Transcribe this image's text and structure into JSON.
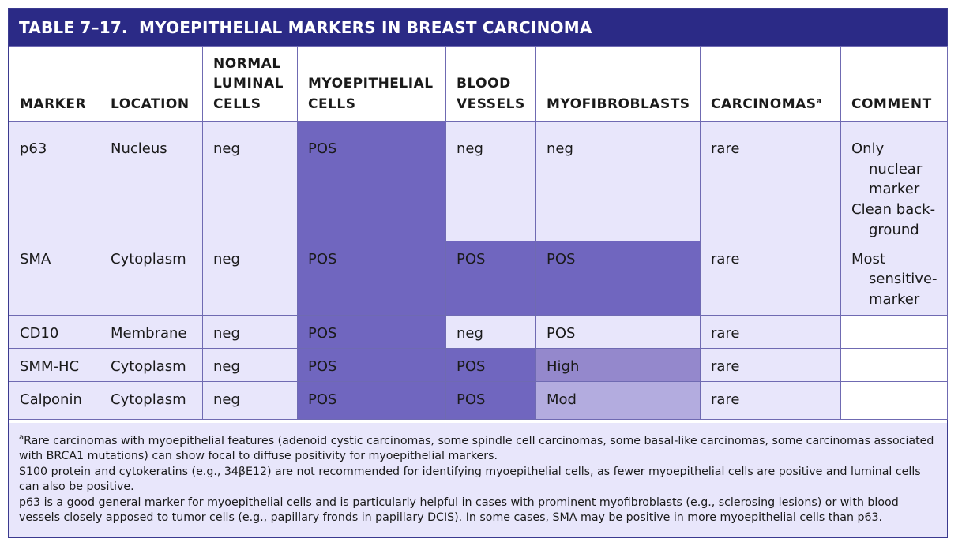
{
  "title": {
    "number": "TABLE 7–17.",
    "text": "MYOEPITHELIAL MARKERS IN BREAST CARCINOMA"
  },
  "headers": {
    "marker": "MARKER",
    "location": "LOCATION",
    "normal_1": "NORMAL",
    "normal_2": "LUMINAL",
    "normal_3": "CELLS",
    "myo_1": "MYOEPITHELIAL",
    "myo_2": "CELLS",
    "blood_1": "BLOOD",
    "blood_2": "VESSELS",
    "myofib": "MYOFIBROBLASTS",
    "carcinomas": "CARCINOMAS",
    "carcinomas_sup": "a",
    "comment": "COMMENT"
  },
  "rows": [
    {
      "marker": "p63",
      "location": "Nucleus",
      "normal": "neg",
      "myo": "POS",
      "blood": "neg",
      "myofib": "neg",
      "carcinomas": "rare",
      "comment": [
        "Only",
        "nuclear",
        "marker",
        "Clean back-",
        "ground"
      ]
    },
    {
      "marker": "SMA",
      "location": "Cytoplasm",
      "normal": "neg",
      "myo": "POS",
      "blood": "POS",
      "myofib": "POS",
      "carcinomas": "rare",
      "comment": [
        "Most",
        "sensitive-",
        "marker"
      ]
    },
    {
      "marker": "CD10",
      "location": "Membrane",
      "normal": "neg",
      "myo": "POS",
      "blood": "neg",
      "myofib": "POS",
      "carcinomas": "rare",
      "comment": []
    },
    {
      "marker": "SMM-HC",
      "location": "Cytoplasm",
      "normal": "neg",
      "myo": "POS",
      "blood": "POS",
      "myofib": "High",
      "carcinomas": "rare",
      "comment": []
    },
    {
      "marker": "Calponin",
      "location": "Cytoplasm",
      "normal": "neg",
      "myo": "POS",
      "blood": "POS",
      "myofib": "Mod",
      "carcinomas": "rare",
      "comment": []
    }
  ],
  "notes": {
    "note1_sup": "a",
    "note1": "Rare carcinomas with myoepithelial features (adenoid cystic carcinomas, some spindle cell carcinomas, some basal-like carcinomas, some carcinomas associated with BRCA1 mutations) can show focal to diffuse positivity for myoepithelial markers.",
    "note2": "S100 protein and cytokeratins (e.g., 34βE12) are not recommended for identifying myoepithelial cells, as fewer myoepithelial cells are positive and luminal cells can also be positive.",
    "note3": "p63 is a good general marker for myoepithelial cells and is particularly helpful in cases with prominent myofibroblasts (e.g., sclerosing lesions) or with blood vessels closely apposed to tumor cells (e.g., papillary fronds in papillary DCIS). In some cases, SMA may be positive in more myoepithelial cells than p63."
  },
  "colors": {
    "title_bar": "#2b2a86",
    "cell_light": "#e8e6fb",
    "cell_pos": "#7066bf",
    "cell_high": "#9488cc",
    "cell_mod": "#b3acdf",
    "grid": "#6f6ab2"
  }
}
